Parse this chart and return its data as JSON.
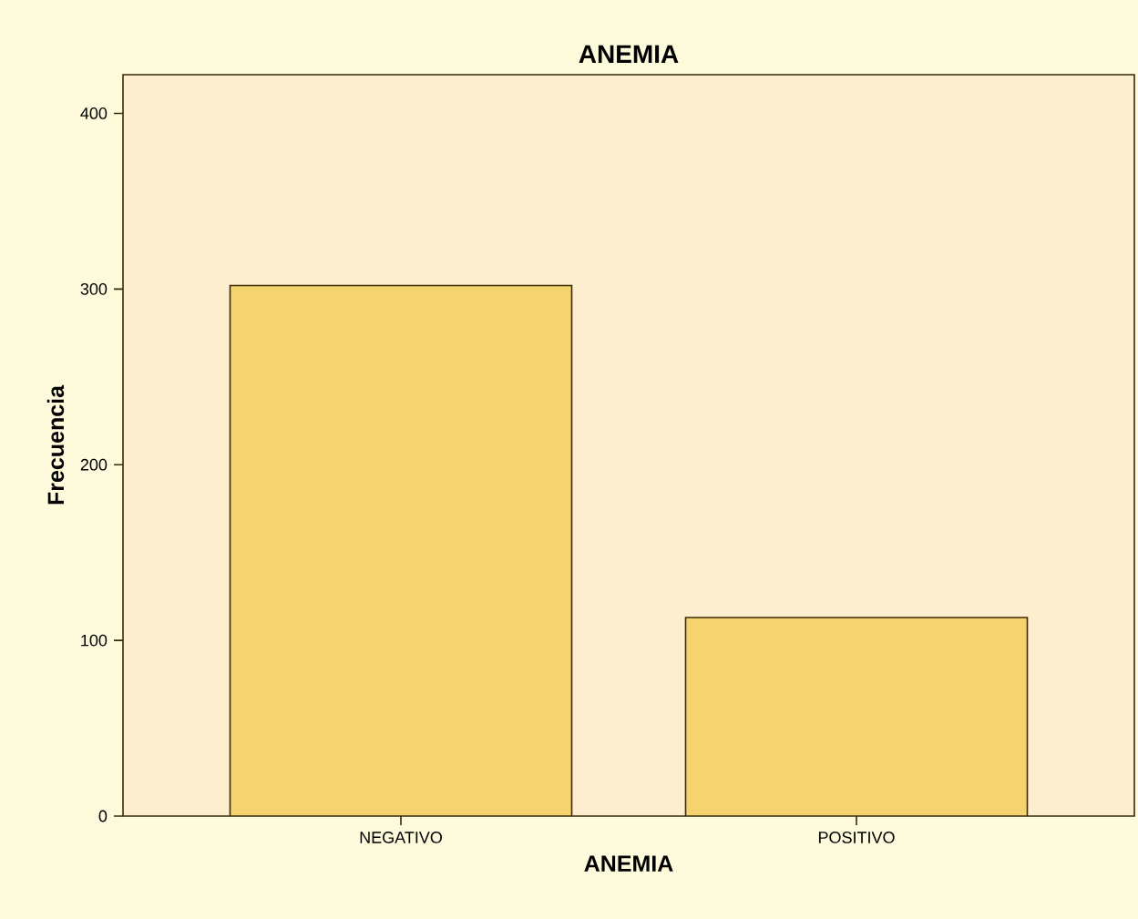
{
  "chart_data": {
    "type": "bar",
    "title": "ANEMIA",
    "xlabel": "ANEMIA",
    "ylabel": "Frecuencia",
    "categories": [
      "NEGATIVO",
      "POSITIVO"
    ],
    "values": [
      302,
      113
    ],
    "color": "#f5d470",
    "ylim": [
      0,
      422
    ],
    "yticks": [
      0,
      100,
      200,
      300,
      400
    ]
  }
}
